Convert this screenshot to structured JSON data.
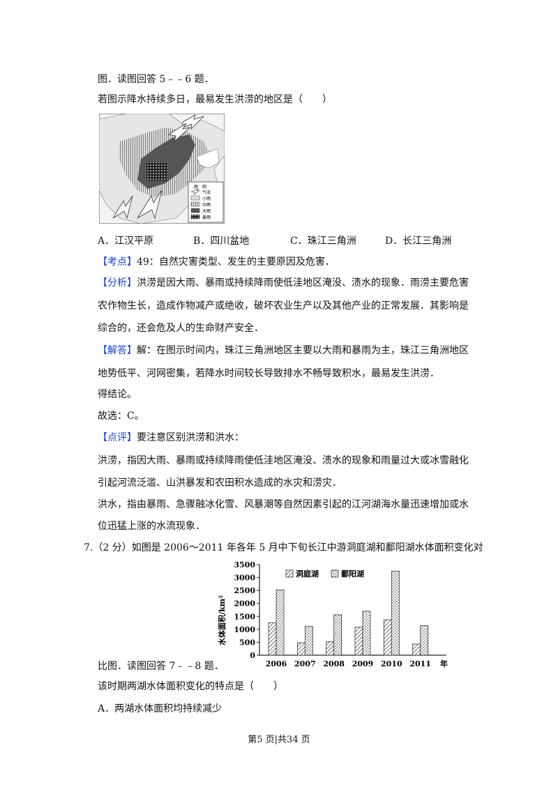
{
  "lines": {
    "l1": "图．读图回答 5﹣﹣6 题．",
    "l2": "若图示降水持续多日，最易发生洪涝的地区是（　　）",
    "kd_tag": "【考点】",
    "kd_text": "49：自然灾害类型、发生的主要原因及危害．",
    "fx_tag": "【分析】",
    "fx_text1": "洪涝是因大雨、暴雨或持续降雨使低洼地区淹没、渍水的现象．雨涝主要危害",
    "fx_text2": "农作物生长，造成作物减产或绝收，破坏农业生产以及其他产业的正常发展．其影响是",
    "fx_text3": "综合的，还会危及人的生命财产安全．",
    "jd_tag": "【解答】",
    "jd_text1": "解：在图示时间内，珠江三角洲地区主要以大雨和暴雨为主，珠江三角洲地区",
    "jd_text2": "地势低平、河网密集，若降水时间较长导致排水不畅导致积水，最易发生洪涝．",
    "jd_text3": "得结论。",
    "jd_text4": "故选：C。",
    "dp_tag": "【点评】",
    "dp_text": "要注意区别洪涝和洪水：",
    "dp_text2": "洪涝，指因大雨、暴雨或持续降雨使低洼地区淹没、渍水的现象和雨量过大或冰雪融化",
    "dp_text3": "引起河流泛滥、山洪暴发和农田积水造成的水灾和涝灾．",
    "dp_text4": "洪水，指由暴雨、急骤融冰化雪、风暴潮等自然因素引起的江河湖海水量迅速增加或水",
    "dp_text5": "位迅猛上涨的水流现象．",
    "q7": "7.（2 分）如图是 2006～2011 年各年 5 月中下旬长江中游洞庭湖和鄱阳湖水体面积变化对",
    "q7b": "比图．读图回答 7﹣﹣8 题．",
    "q7c": "该时期两湖水体面积变化的特点是（　　）",
    "q7a": "A．两湖水体面积均持续减少"
  },
  "options": [
    "A．江汉平原",
    "B．四川盆地",
    "C．珠江三角洲",
    "D．长江三角洲"
  ],
  "map_legend": {
    "title": "图　例",
    "items": [
      "气流",
      "小雨",
      "中雨",
      "大雨",
      "暴雨"
    ]
  },
  "chart_data": {
    "type": "bar",
    "categories": [
      "2006",
      "2007",
      "2008",
      "2009",
      "2010",
      "2011"
    ],
    "x_suffix": "年",
    "ylabel": "水体面积/km²",
    "ylim": [
      0,
      3500
    ],
    "yticks": [
      0,
      500,
      1000,
      1500,
      2000,
      2500,
      3000,
      3500
    ],
    "series": [
      {
        "name": "洞庭湖",
        "values": [
          1250,
          480,
          520,
          1080,
          1370,
          430
        ]
      },
      {
        "name": "鄱阳湖",
        "values": [
          2520,
          1110,
          1560,
          1700,
          3250,
          1140
        ]
      }
    ]
  },
  "footer": "第5 页|共34 页"
}
